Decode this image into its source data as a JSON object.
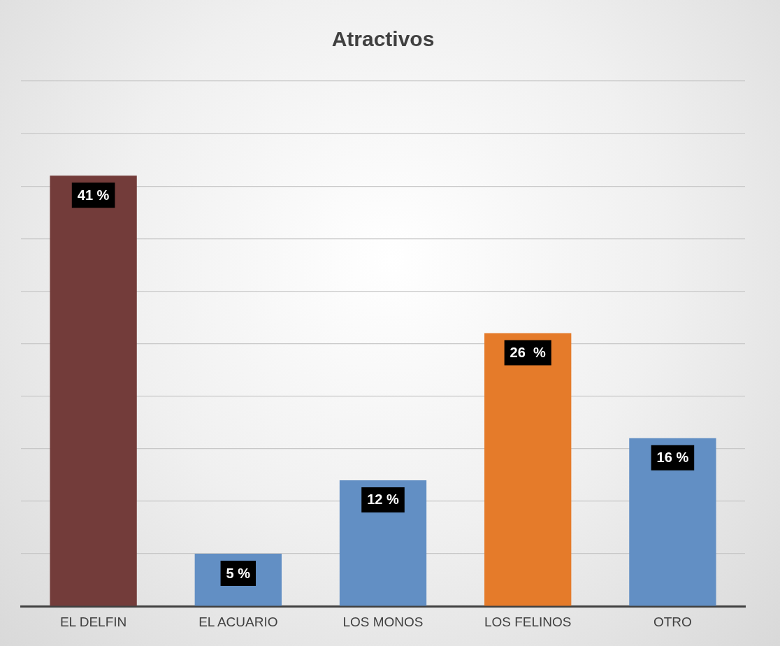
{
  "chart_data": {
    "type": "bar",
    "title": "Atractivos",
    "categories": [
      "EL DELFIN",
      "EL ACUARIO",
      "LOS MONOS",
      "LOS FELINOS",
      "OTRO"
    ],
    "values": [
      41,
      5,
      12,
      26,
      16
    ],
    "colors": [
      "#733c3a",
      "#628fc4",
      "#628fc4",
      "#e57b2a",
      "#628fc4"
    ],
    "value_labels": [
      "41 %",
      "5 %",
      "12 %",
      "26  %",
      "16 %"
    ],
    "ylim": [
      0,
      50
    ],
    "yticks": [
      0,
      5,
      10,
      15,
      20,
      25,
      30,
      35,
      40,
      45,
      50
    ],
    "tick_labels": "x",
    "grid": "y",
    "legend": false
  }
}
